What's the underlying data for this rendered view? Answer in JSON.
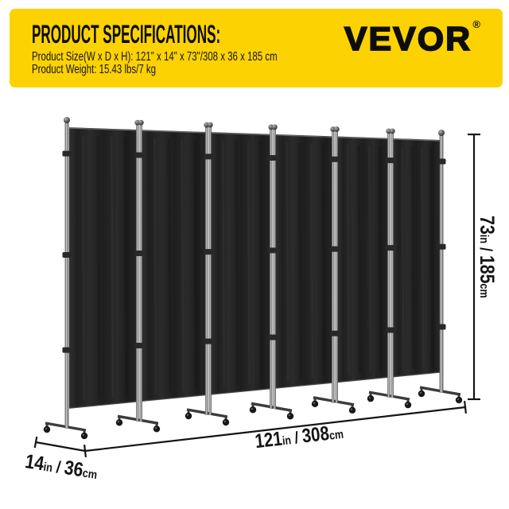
{
  "banner": {
    "title": "PRODUCT SPECIFICATIONS:",
    "brand": "VEVOR",
    "registered_mark": "®",
    "size_label": "Product Size(W x D x H): 121\" x 14\" x 73\"/308 x 36 x 185 cm",
    "weight_label": "Product Weight: 15.43 lbs/7 kg",
    "background_color": "#FCD202",
    "text_color": "#0d0d0d"
  },
  "figure": {
    "product_name": "6-panel folding room divider with wheels",
    "panel_count": 6,
    "colors": {
      "fabric": "#242424",
      "pole_light": "#c9c9c9",
      "pole_dark": "#4f4f4f",
      "dimension": "#141414"
    },
    "dimensions": {
      "height": {
        "value_imperial": "73",
        "unit_imperial": "in",
        "separator": " / ",
        "value_metric": "185",
        "unit_metric": "cm"
      },
      "width": {
        "value_imperial": "121",
        "unit_imperial": "in",
        "separator": " / ",
        "value_metric": "308",
        "unit_metric": "cm"
      },
      "depth": {
        "value_imperial": "14",
        "unit_imperial": "in",
        "separator": " / ",
        "value_metric": "36",
        "unit_metric": "cm"
      }
    }
  }
}
